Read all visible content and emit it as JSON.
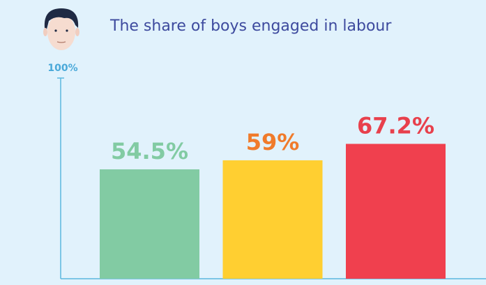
{
  "chart_data": {
    "type": "bar",
    "title": "The share of boys engaged in labour",
    "values": [
      54.5,
      59,
      67.2
    ],
    "value_labels": [
      "54.5%",
      "59%",
      "67.2%"
    ],
    "colors": [
      "#82cba3",
      "#ffcf31",
      "#f0404e"
    ],
    "value_label_colors": [
      "#82cba3",
      "#f07b2b",
      "#e8404c"
    ],
    "ylim": [
      0,
      100
    ],
    "yticks": [
      {
        "value": 100,
        "label": "100%"
      }
    ]
  }
}
